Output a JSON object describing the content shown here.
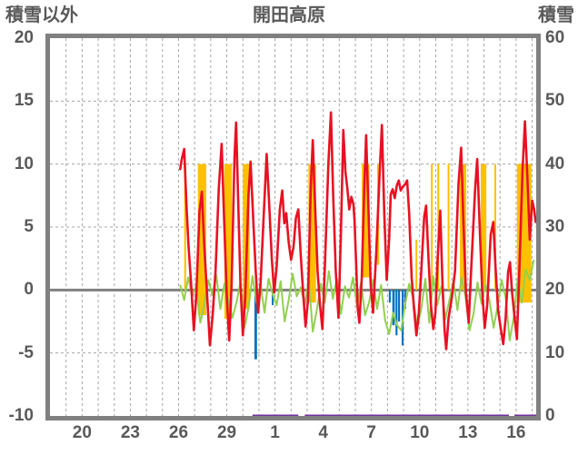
{
  "header": {
    "left_axis_title": "積雪以外",
    "title": "開田高原",
    "right_axis_title": "積雪"
  },
  "colors": {
    "text": "#595959",
    "axis_border": "#808080",
    "gridline": "#a6a6a6",
    "zero_line": "#808080",
    "red": "#e81123",
    "amber": "#ffc000",
    "green": "#92d050",
    "blue": "#0070c0",
    "purple": "#7030a0"
  },
  "chart_data": {
    "type": "line",
    "title": "開田高原",
    "left_axis": {
      "label": "積雪以外",
      "range": [
        -10,
        20
      ],
      "tick_labels": [
        "20",
        "15",
        "10",
        "5",
        "0",
        "-5",
        "-10"
      ],
      "tick_values": [
        20,
        15,
        10,
        5,
        0,
        -5,
        -10
      ]
    },
    "right_axis": {
      "label": "積雪",
      "range": [
        0,
        60
      ],
      "tick_labels": [
        "60",
        "50",
        "40",
        "30",
        "20",
        "10",
        "0"
      ],
      "tick_values": [
        60,
        50,
        40,
        30,
        20,
        10,
        0
      ]
    },
    "x_axis": {
      "range": [
        0,
        30.25
      ],
      "gridline_positions": [
        1,
        2,
        3,
        4,
        5,
        6,
        7,
        8,
        9,
        10,
        11,
        12,
        13,
        14,
        15,
        16,
        17,
        18,
        19,
        20,
        21,
        22,
        23,
        24,
        25,
        26,
        27,
        28,
        29,
        30
      ],
      "tick_labels": [
        "20",
        "23",
        "26",
        "29",
        "1",
        "4",
        "7",
        "10",
        "13",
        "16"
      ],
      "tick_positions": [
        2,
        5,
        8,
        11,
        14,
        17,
        20,
        23,
        26,
        29
      ]
    },
    "h_gridlines": [
      15,
      10,
      5,
      -5
    ],
    "zero_line_value": 0,
    "series": [
      {
        "name": "amber-bars",
        "type": "bar-span",
        "color": "#ffc000",
        "bars": [
          [
            8.35,
            8.47,
            0,
            10
          ],
          [
            9.2,
            9.72,
            -2,
            10
          ],
          [
            10.85,
            11.32,
            -2.3,
            10
          ],
          [
            12.0,
            12.42,
            -1.5,
            10
          ],
          [
            16.08,
            16.55,
            -1,
            10
          ],
          [
            19.4,
            19.88,
            1,
            10
          ],
          [
            20.35,
            20.48,
            2,
            10
          ],
          [
            22.74,
            22.82,
            0,
            4
          ],
          [
            23.7,
            23.79,
            -0.5,
            10
          ],
          [
            24.1,
            24.19,
            0,
            10
          ],
          [
            24.74,
            24.82,
            0,
            10
          ],
          [
            25.5,
            25.9,
            0,
            10
          ],
          [
            26.8,
            27.15,
            0,
            10
          ],
          [
            27.65,
            27.75,
            0,
            10
          ],
          [
            29.05,
            29.95,
            -1,
            10
          ]
        ]
      },
      {
        "name": "blue-bars",
        "type": "bar-span",
        "color": "#0070c0",
        "bars": [
          [
            12.72,
            12.88,
            -5.5,
            0
          ],
          [
            13.8,
            13.9,
            -1.2,
            0
          ],
          [
            21.08,
            21.2,
            -1.0,
            0
          ],
          [
            21.3,
            21.45,
            -2.8,
            0
          ],
          [
            21.5,
            21.62,
            -3.6,
            0
          ],
          [
            21.66,
            21.78,
            -2.5,
            0
          ],
          [
            21.88,
            22.0,
            -4.4,
            0
          ],
          [
            22.04,
            22.12,
            -1.5,
            0
          ]
        ]
      },
      {
        "name": "green-line",
        "type": "line-uniform",
        "color": "#92d050",
        "start": 8.1,
        "step": 0.25,
        "values": [
          0.4,
          -0.8,
          1.0,
          -0.5,
          0.3,
          -2.6,
          -1.2,
          0.8,
          -0.4,
          1.2,
          -1.5,
          0.5,
          -0.9,
          -2.2,
          -1.0,
          0.6,
          -3.0,
          -1.4,
          1.1,
          -1.0,
          0.4,
          -1.8,
          0.9,
          -0.3,
          -1.2,
          0.7,
          -2.5,
          -0.8,
          1.3,
          -0.5,
          0.2,
          -1.2,
          0.8,
          -3.3,
          -1.6,
          0.5,
          -1.0,
          1.5,
          -0.7,
          0.9,
          -1.9,
          0.3,
          -0.6,
          1.0,
          -1.3,
          0.6,
          -2.0,
          -1.0,
          0.8,
          -1.5,
          0.4,
          -2.4,
          -3.5,
          -1.8,
          -2.8,
          -3.2,
          -1.1,
          0.5,
          -0.7,
          -3.0,
          -1.5,
          0.9,
          -2.6,
          1.1,
          -1.2,
          0.3,
          -2.3,
          -0.8,
          0.7,
          -1.6,
          1.0,
          -0.5,
          -3.2,
          -1.9,
          0.6,
          -1.1,
          0.4,
          -0.9,
          -3.0,
          -1.3,
          0.8,
          -0.6,
          -4.0,
          -2.2,
          0.9,
          -1.0,
          1.6,
          0.8,
          2.4
        ]
      },
      {
        "name": "red-line",
        "type": "line-points",
        "color": "#e81123",
        "points": [
          [
            8.1,
            9.6
          ],
          [
            8.2,
            10.4
          ],
          [
            8.35,
            11.2
          ],
          [
            8.5,
            6.5
          ],
          [
            8.62,
            3.5
          ],
          [
            8.78,
            0.5
          ],
          [
            8.95,
            -3.2
          ],
          [
            9.1,
            -0.5
          ],
          [
            9.3,
            6.2
          ],
          [
            9.45,
            7.8
          ],
          [
            9.6,
            3.5
          ],
          [
            9.78,
            -0.5
          ],
          [
            9.95,
            -4.4
          ],
          [
            10.12,
            -2.0
          ],
          [
            10.3,
            1.5
          ],
          [
            10.5,
            8.0
          ],
          [
            10.68,
            11.6
          ],
          [
            10.85,
            5.0
          ],
          [
            11.0,
            -0.5
          ],
          [
            11.15,
            -4.0
          ],
          [
            11.3,
            0.5
          ],
          [
            11.48,
            10.5
          ],
          [
            11.58,
            13.3
          ],
          [
            11.7,
            7.5
          ],
          [
            11.85,
            0.5
          ],
          [
            12.0,
            -3.6
          ],
          [
            12.15,
            -0.5
          ],
          [
            12.35,
            7.5
          ],
          [
            12.48,
            10.2
          ],
          [
            12.65,
            5.5
          ],
          [
            12.8,
            1.5
          ],
          [
            12.95,
            -1.8
          ],
          [
            13.1,
            0.5
          ],
          [
            13.3,
            6.0
          ],
          [
            13.48,
            10.8
          ],
          [
            13.65,
            6.5
          ],
          [
            13.8,
            2.5
          ],
          [
            13.95,
            -0.2
          ],
          [
            14.1,
            1.8
          ],
          [
            14.3,
            6.4
          ],
          [
            14.45,
            7.9
          ],
          [
            14.58,
            5.3
          ],
          [
            14.7,
            6.1
          ],
          [
            14.85,
            3.8
          ],
          [
            15.0,
            2.4
          ],
          [
            15.15,
            3.4
          ],
          [
            15.3,
            5.7
          ],
          [
            15.45,
            6.4
          ],
          [
            15.6,
            2.8
          ],
          [
            15.75,
            -0.2
          ],
          [
            15.9,
            -2.9
          ],
          [
            16.05,
            -0.8
          ],
          [
            16.22,
            8.0
          ],
          [
            16.35,
            11.9
          ],
          [
            16.5,
            6.5
          ],
          [
            16.65,
            1.5
          ],
          [
            16.8,
            -1.2
          ],
          [
            16.95,
            -3.1
          ],
          [
            17.12,
            2.5
          ],
          [
            17.32,
            10.0
          ],
          [
            17.48,
            14.1
          ],
          [
            17.62,
            7.5
          ],
          [
            17.78,
            1.5
          ],
          [
            17.95,
            -2.2
          ],
          [
            18.1,
            4.5
          ],
          [
            18.25,
            12.7
          ],
          [
            18.38,
            9.4
          ],
          [
            18.5,
            8.1
          ],
          [
            18.62,
            6.4
          ],
          [
            18.75,
            7.4
          ],
          [
            18.88,
            6.8
          ],
          [
            18.95,
            5.5
          ],
          [
            19.05,
            2.0
          ],
          [
            19.15,
            -1.5
          ],
          [
            19.25,
            -2.6
          ],
          [
            19.4,
            1.0
          ],
          [
            19.55,
            8.0
          ],
          [
            19.67,
            12.3
          ],
          [
            19.8,
            7.0
          ],
          [
            19.95,
            0.5
          ],
          [
            20.1,
            -1.8
          ],
          [
            20.3,
            3.0
          ],
          [
            20.5,
            9.0
          ],
          [
            20.65,
            13.1
          ],
          [
            20.8,
            6.0
          ],
          [
            20.95,
            0.8
          ],
          [
            21.1,
            4.0
          ],
          [
            21.2,
            7.6
          ],
          [
            21.32,
            8.0
          ],
          [
            21.45,
            7.3
          ],
          [
            21.58,
            8.3
          ],
          [
            21.7,
            8.7
          ],
          [
            21.82,
            7.9
          ],
          [
            21.95,
            8.2
          ],
          [
            22.1,
            8.4
          ],
          [
            22.22,
            8.7
          ],
          [
            22.35,
            6.0
          ],
          [
            22.5,
            1.0
          ],
          [
            22.65,
            -1.5
          ],
          [
            22.8,
            -3.6
          ],
          [
            22.95,
            -1.8
          ],
          [
            23.1,
            1.5
          ],
          [
            23.28,
            5.8
          ],
          [
            23.4,
            6.7
          ],
          [
            23.55,
            2.5
          ],
          [
            23.7,
            -1.2
          ],
          [
            23.85,
            -3.1
          ],
          [
            23.98,
            -1.8
          ],
          [
            24.12,
            2.5
          ],
          [
            24.28,
            6.3
          ],
          [
            24.42,
            0.5
          ],
          [
            24.55,
            -3.2
          ],
          [
            24.65,
            -4.7
          ],
          [
            24.8,
            -2.2
          ],
          [
            25.0,
            -0.6
          ],
          [
            25.2,
            1.5
          ],
          [
            25.42,
            8.5
          ],
          [
            25.58,
            11.3
          ],
          [
            25.72,
            5.5
          ],
          [
            25.88,
            -0.2
          ],
          [
            26.05,
            -2.6
          ],
          [
            26.2,
            1.5
          ],
          [
            26.45,
            8.0
          ],
          [
            26.58,
            10.4
          ],
          [
            26.75,
            4.5
          ],
          [
            26.9,
            -0.3
          ],
          [
            27.05,
            -3.0
          ],
          [
            27.2,
            -1.2
          ],
          [
            27.42,
            4.4
          ],
          [
            27.58,
            5.4
          ],
          [
            27.72,
            1.8
          ],
          [
            27.88,
            -1.6
          ],
          [
            28.05,
            -3.1
          ],
          [
            28.2,
            -4.3
          ],
          [
            28.35,
            -2.2
          ],
          [
            28.5,
            1.4
          ],
          [
            28.62,
            2.2
          ],
          [
            28.75,
            -0.2
          ],
          [
            28.9,
            -2.1
          ],
          [
            29.05,
            -3.9
          ],
          [
            29.2,
            1.5
          ],
          [
            29.4,
            9.5
          ],
          [
            29.55,
            13.4
          ],
          [
            29.7,
            9.0
          ],
          [
            29.85,
            4.0
          ],
          [
            30.0,
            7.1
          ],
          [
            30.12,
            6.4
          ],
          [
            30.22,
            5.4
          ]
        ]
      },
      {
        "name": "purple-baseline",
        "type": "segments",
        "color": "#7030a0",
        "axis": "right",
        "value": 0,
        "segments": [
          [
            12.6,
            15.45
          ],
          [
            15.85,
            28.55
          ],
          [
            28.9,
            30.25
          ]
        ]
      }
    ]
  }
}
